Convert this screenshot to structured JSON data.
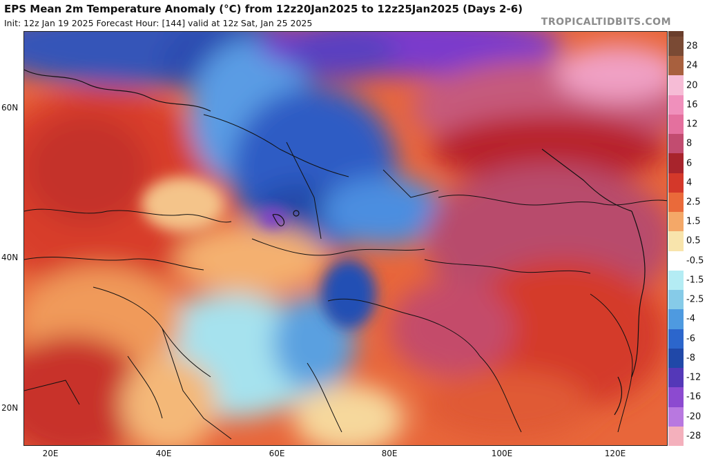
{
  "header": {
    "title": "EPS Mean 2m Temperature Anomaly (°C) from 12z20Jan2025 to 12z25Jan2025 (Days 2-6)",
    "subtitle": "Init: 12z Jan 19 2025   Forecast Hour: [144]   valid at 12z Sat, Jan 25 2025",
    "credit": "TROPICALTIDBITS.COM"
  },
  "map": {
    "lat_labels": [
      "60N",
      "40N",
      "20N"
    ],
    "lon_labels": [
      "20E",
      "40E",
      "60E",
      "80E",
      "100E",
      "120E"
    ],
    "colors": {
      "deep_warm": "#9c1c2c",
      "warm": "#d83c2a",
      "warm_orange": "#e8663a",
      "light_orange": "#f4a060",
      "pale": "#f8e6b0",
      "cool_cyan": "#9ee0ee",
      "cool": "#4a8cde",
      "cold": "#2452b8",
      "cold_purple": "#7a3acc",
      "pink": "#d85c8c"
    }
  },
  "colorbar": {
    "levels": [
      {
        "label": "28",
        "color": "#7a4a34"
      },
      {
        "label": "24",
        "color": "#a8603e"
      },
      {
        "label": "20",
        "color": "#f6bcd6"
      },
      {
        "label": "16",
        "color": "#f090bc"
      },
      {
        "label": "12",
        "color": "#e4709e"
      },
      {
        "label": "8",
        "color": "#c24c70"
      },
      {
        "label": "6",
        "color": "#a8242c"
      },
      {
        "label": "4",
        "color": "#d4382a"
      },
      {
        "label": "2.5",
        "color": "#ea6a3a"
      },
      {
        "label": "1.5",
        "color": "#f4a868"
      },
      {
        "label": "0.5",
        "color": "#f8e4ac"
      },
      {
        "label": "-0.5",
        "color": "#ffffff"
      },
      {
        "label": "-1.5",
        "color": "#b4ecf4"
      },
      {
        "label": "-2.5",
        "color": "#86cbe8"
      },
      {
        "label": "-4",
        "color": "#4e9ae0"
      },
      {
        "label": "-6",
        "color": "#2c66cc"
      },
      {
        "label": "-8",
        "color": "#2048a8"
      },
      {
        "label": "-12",
        "color": "#5438b8"
      },
      {
        "label": "-16",
        "color": "#8c4ad0"
      },
      {
        "label": "-20",
        "color": "#b878e0"
      },
      {
        "label": "-28",
        "color": "#f4b0bc"
      }
    ]
  }
}
